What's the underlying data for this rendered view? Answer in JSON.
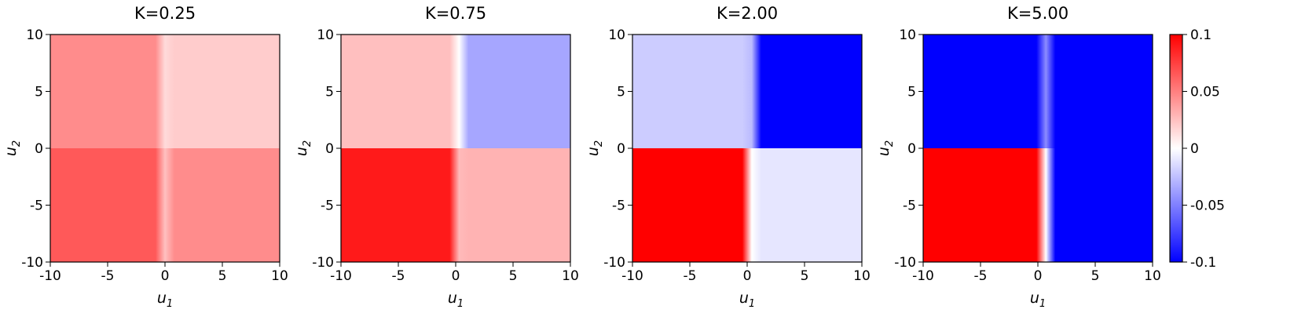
{
  "chart_data": [
    {
      "type": "heatmap",
      "title": "K=0.25",
      "xlabel": "u1",
      "ylabel": "u2",
      "xlim": [
        -10,
        10
      ],
      "ylim": [
        -10,
        10
      ],
      "xticks": [
        "-10",
        "-5",
        "0",
        "5",
        "10"
      ],
      "yticks": [
        "-10",
        "-5",
        "0",
        "5",
        "10"
      ],
      "quadrants": {
        "upper_left": 0.045,
        "upper_right": 0.02,
        "lower_left": 0.065,
        "lower_right": 0.045
      },
      "boundary_x": 0.0,
      "grid": false
    },
    {
      "type": "heatmap",
      "title": "K=0.75",
      "xlabel": "u1",
      "ylabel": "u2",
      "xlim": [
        -10,
        10
      ],
      "ylim": [
        -10,
        10
      ],
      "xticks": [
        "-10",
        "-5",
        "0",
        "5",
        "10"
      ],
      "yticks": [
        "-10",
        "-5",
        "0",
        "5",
        "10"
      ],
      "quadrants": {
        "upper_left": 0.025,
        "upper_right": -0.035,
        "lower_left": 0.09,
        "lower_right": 0.03
      },
      "boundary_x": 0.3,
      "grid": false
    },
    {
      "type": "heatmap",
      "title": "K=2.00",
      "xlabel": "u1",
      "ylabel": "u2",
      "xlim": [
        -10,
        10
      ],
      "ylim": [
        -10,
        10
      ],
      "xticks": [
        "-10",
        "-5",
        "0",
        "5",
        "10"
      ],
      "yticks": [
        "-10",
        "-5",
        "0",
        "5",
        "10"
      ],
      "quadrants": {
        "upper_left": -0.02,
        "upper_right": -0.1,
        "lower_left": 0.1,
        "lower_right": -0.01
      },
      "boundary_x": 0.4,
      "grid": false
    },
    {
      "type": "heatmap",
      "title": "K=5.00",
      "xlabel": "u1",
      "ylabel": "u2",
      "xlim": [
        -10,
        10
      ],
      "ylim": [
        -10,
        10
      ],
      "xticks": [
        "-10",
        "-5",
        "0",
        "5",
        "10"
      ],
      "yticks": [
        "-10",
        "-5",
        "0",
        "5",
        "10"
      ],
      "quadrants": {
        "upper_left": -0.1,
        "upper_right": -0.1,
        "lower_left": 0.1,
        "lower_right": -0.1
      },
      "boundary_x": 0.7,
      "grid": false
    }
  ],
  "colorbar": {
    "range": [
      -0.1,
      0.1
    ],
    "ticks": [
      {
        "value": 0.1,
        "label": "0.1"
      },
      {
        "value": 0.05,
        "label": "0.05"
      },
      {
        "value": 0,
        "label": "0"
      },
      {
        "value": -0.05,
        "label": "-0.05"
      },
      {
        "value": -0.1,
        "label": "-0.1"
      }
    ],
    "colormap": "bwr",
    "low_color": "#0000ff",
    "mid_color": "#ffffff",
    "high_color": "#ff0000"
  }
}
